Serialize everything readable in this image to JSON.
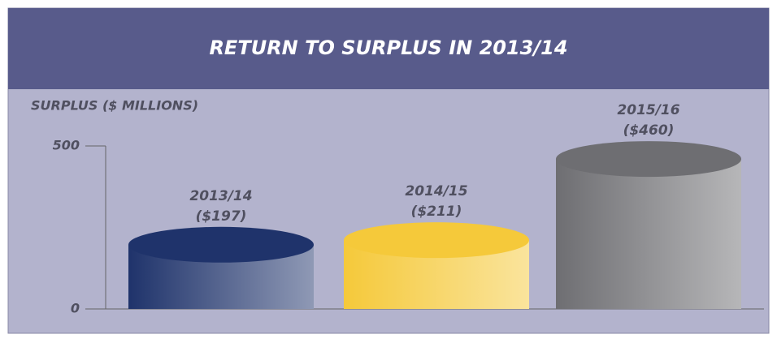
{
  "chart_data": {
    "type": "cylinder",
    "title": "RETURN TO SURPLUS IN 2013/14",
    "y_label": "SURPLUS ($ MILLIONS)",
    "categories": [
      "2013/14",
      "2014/15",
      "2015/16"
    ],
    "values": [
      197,
      211,
      460
    ],
    "value_labels": [
      "($197)",
      "($211)",
      "($460)"
    ],
    "colors": [
      "#1f336b",
      "#f5c93a",
      "#6e6e72"
    ],
    "ylim": [
      0,
      500
    ],
    "yticks": [
      0,
      500
    ]
  }
}
